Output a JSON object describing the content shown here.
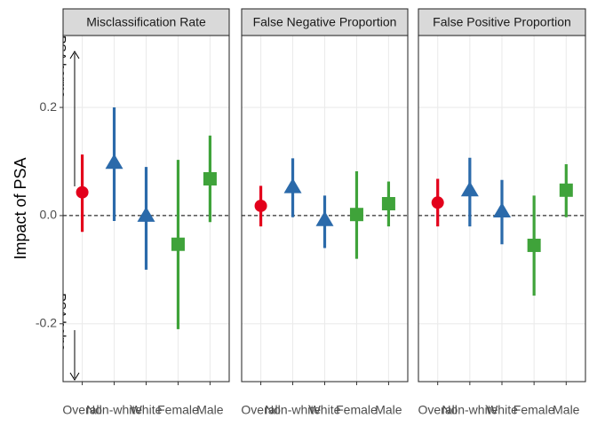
{
  "chart_data": [
    {
      "type": "pointrange",
      "title": "Misclassification Rate",
      "ylabel": "Impact of PSA",
      "annotations": [
        "PSA harms",
        "PSA helps"
      ],
      "categories": [
        "Overall",
        "Non-white",
        "White",
        "Female",
        "Male"
      ],
      "values": [
        0.043,
        0.098,
        0.0,
        -0.053,
        0.068
      ],
      "lower": [
        -0.03,
        -0.01,
        -0.1,
        -0.21,
        -0.012
      ],
      "upper": [
        0.113,
        0.2,
        0.09,
        0.103,
        0.148
      ],
      "colors": [
        "#e3001b",
        "#2b6aaa",
        "#2b6aaa",
        "#3fa33a",
        "#3fa33a"
      ],
      "shapes": [
        "circle",
        "triangle",
        "triangle",
        "square",
        "square"
      ],
      "ylim": [
        -0.307,
        0.333
      ],
      "yticks": [
        {
          "value": -0.2,
          "label": "-0.2"
        },
        {
          "value": 0,
          "label": "0.0"
        },
        {
          "value": 0.2,
          "label": "0.2"
        }
      ],
      "grid": true,
      "reference_line": 0
    },
    {
      "type": "pointrange",
      "title": "False Negative Proportion",
      "categories": [
        "Overall",
        "Non-white",
        "White",
        "Female",
        "Male"
      ],
      "values": [
        0.018,
        0.053,
        -0.008,
        0.002,
        0.022
      ],
      "lower": [
        -0.02,
        -0.003,
        -0.06,
        -0.08,
        -0.02
      ],
      "upper": [
        0.055,
        0.106,
        0.037,
        0.082,
        0.063
      ],
      "colors": [
        "#e3001b",
        "#2b6aaa",
        "#2b6aaa",
        "#3fa33a",
        "#3fa33a"
      ],
      "shapes": [
        "circle",
        "triangle",
        "triangle",
        "square",
        "square"
      ],
      "ylim": [
        -0.307,
        0.333
      ],
      "yticks": [
        -0.2,
        0,
        0.2
      ],
      "grid": true,
      "reference_line": 0
    },
    {
      "type": "pointrange",
      "title": "False Positive Proportion",
      "categories": [
        "Overall",
        "Non-white",
        "White",
        "Female",
        "Male"
      ],
      "values": [
        0.024,
        0.047,
        0.008,
        -0.055,
        0.047
      ],
      "lower": [
        -0.02,
        -0.02,
        -0.053,
        -0.148,
        -0.003
      ],
      "upper": [
        0.068,
        0.107,
        0.066,
        0.037,
        0.095
      ],
      "colors": [
        "#e3001b",
        "#2b6aaa",
        "#2b6aaa",
        "#3fa33a",
        "#3fa33a"
      ],
      "shapes": [
        "circle",
        "triangle",
        "triangle",
        "square",
        "square"
      ],
      "ylim": [
        -0.307,
        0.333
      ],
      "yticks": [
        -0.2,
        0,
        0.2
      ],
      "grid": true,
      "reference_line": 0
    }
  ]
}
